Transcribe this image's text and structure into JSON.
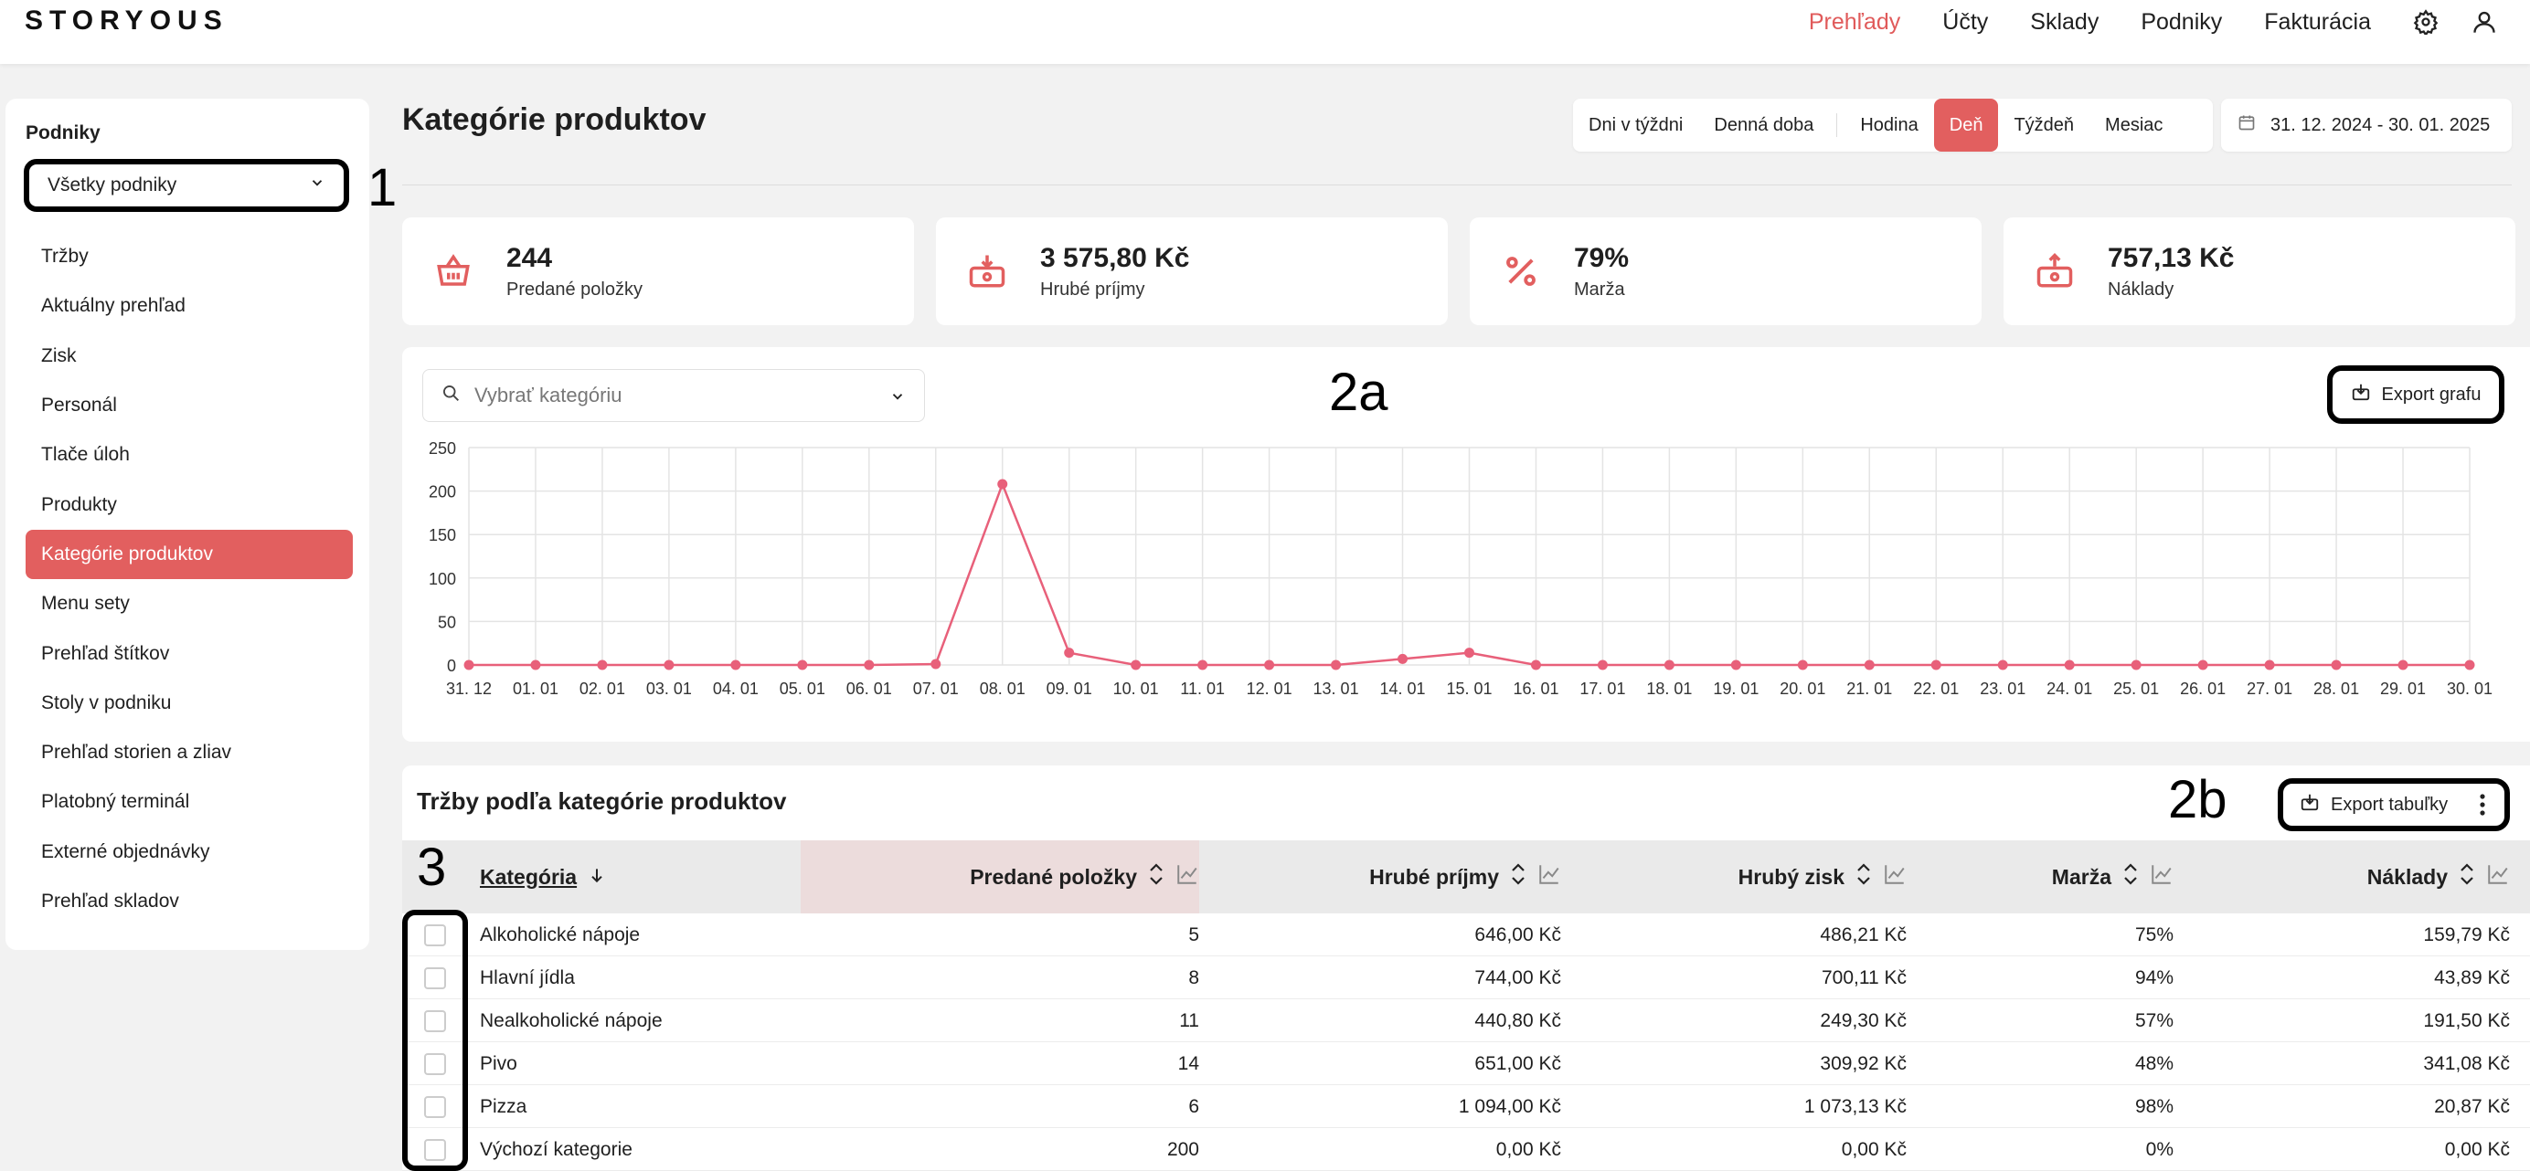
{
  "app": {
    "logo": "STORYOUS"
  },
  "topnav": {
    "items": [
      "Prehľady",
      "Účty",
      "Sklady",
      "Podniky",
      "Fakturácia"
    ],
    "active": "Prehľady",
    "icons": [
      "gear-icon",
      "user-icon"
    ]
  },
  "sidebar": {
    "title": "Podniky",
    "venue_select": "Všetky podniky",
    "items": [
      "Tržby",
      "Aktuálny prehľad",
      "Zisk",
      "Personál",
      "Tlače úloh",
      "Produkty",
      "Kategórie produktov",
      "Menu sety",
      "Prehľad štítkov",
      "Stoly v podniku",
      "Prehľad storien a zliav",
      "Platobný terminál",
      "Externé objednávky",
      "Prehľad skladov"
    ],
    "active": "Kategórie produktov"
  },
  "annotations": {
    "a1": "1",
    "a2a": "2a",
    "a2b": "2b",
    "a3": "3"
  },
  "header": {
    "title": "Kategórie produktov",
    "period_buttons": [
      "Dni v týždni",
      "Denná doba",
      "Hodina",
      "Deň",
      "Týždeň",
      "Mesiac"
    ],
    "active_period": "Deň",
    "date_range": "31. 12. 2024 - 30. 01. 2025"
  },
  "kpis": [
    {
      "value": "244",
      "label": "Predané položky",
      "icon": "basket-icon"
    },
    {
      "value": "3 575,80 Kč",
      "label": "Hrubé príjmy",
      "icon": "cash-in-icon"
    },
    {
      "value": "79%",
      "label": "Marža",
      "icon": "percent-icon"
    },
    {
      "value": "757,13 Kč",
      "label": "Náklady",
      "icon": "cash-out-icon"
    }
  ],
  "chart": {
    "category_placeholder": "Vybrať kategóriu",
    "export_label": "Export grafu"
  },
  "chart_data": {
    "type": "line",
    "x": [
      "31. 12",
      "01. 01",
      "02. 01",
      "03. 01",
      "04. 01",
      "05. 01",
      "06. 01",
      "07. 01",
      "08. 01",
      "09. 01",
      "10. 01",
      "11. 01",
      "12. 01",
      "13. 01",
      "14. 01",
      "15. 01",
      "16. 01",
      "17. 01",
      "18. 01",
      "19. 01",
      "20. 01",
      "21. 01",
      "22. 01",
      "23. 01",
      "24. 01",
      "25. 01",
      "26. 01",
      "27. 01",
      "28. 01",
      "29. 01",
      "30. 01"
    ],
    "series": [
      {
        "values": [
          0,
          0,
          0,
          0,
          0,
          0,
          0,
          1,
          208,
          14,
          0,
          0,
          0,
          0,
          7,
          14,
          0,
          0,
          0,
          0,
          0,
          0,
          0,
          0,
          0,
          0,
          0,
          0,
          0,
          0,
          0
        ],
        "color": "#e8607a"
      }
    ],
    "yticks": [
      0,
      50,
      100,
      150,
      200,
      250
    ],
    "ylim": [
      0,
      250
    ],
    "grid": true,
    "title": "",
    "xlabel": "",
    "ylabel": ""
  },
  "table": {
    "title": "Tržby podľa kategórie produktov",
    "export_label": "Export tabuľky",
    "columns": [
      "Kategória",
      "Predané položky",
      "Hrubé príjmy",
      "Hrubý zisk",
      "Marža",
      "Náklady"
    ],
    "rows": [
      [
        "Alkoholické nápoje",
        "5",
        "646,00 Kč",
        "486,21 Kč",
        "75%",
        "159,79 Kč"
      ],
      [
        "Hlavní jídla",
        "8",
        "744,00 Kč",
        "700,11 Kč",
        "94%",
        "43,89 Kč"
      ],
      [
        "Nealkoholické nápoje",
        "11",
        "440,80 Kč",
        "249,30 Kč",
        "57%",
        "191,50 Kč"
      ],
      [
        "Pivo",
        "14",
        "651,00 Kč",
        "309,92 Kč",
        "48%",
        "341,08 Kč"
      ],
      [
        "Pizza",
        "6",
        "1 094,00 Kč",
        "1 073,13 Kč",
        "98%",
        "20,87 Kč"
      ],
      [
        "Výchozí kategorie",
        "200",
        "0,00 Kč",
        "0,00 Kč",
        "0%",
        "0,00 Kč"
      ]
    ]
  },
  "colors": {
    "accent": "#e25f5f",
    "line": "#e8607a"
  }
}
